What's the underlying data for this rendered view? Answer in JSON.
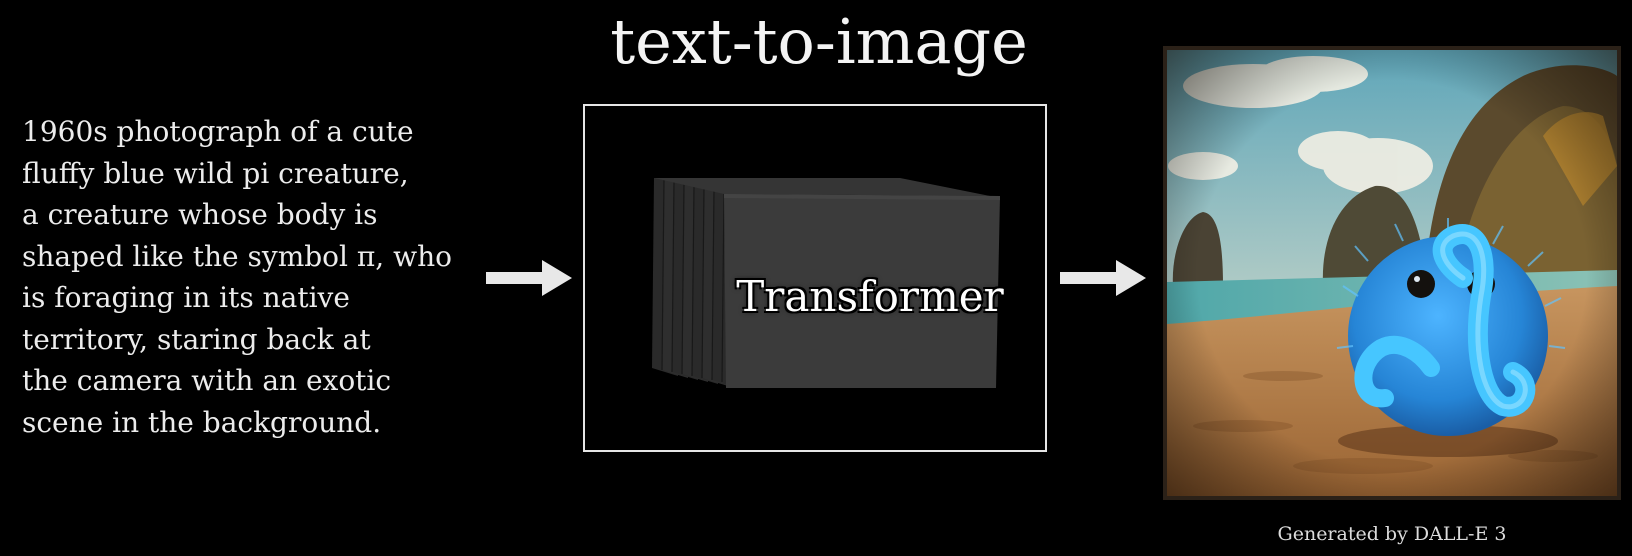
{
  "title": "text-to-image",
  "prompt_lines": [
    "1960s photograph of a cute",
    "fluffy blue wild pi creature,",
    "a creature whose body is",
    "shaped like the symbol π, who",
    "is foraging in its native",
    "territory, staring back at",
    "the camera with an exotic",
    "scene in the background."
  ],
  "model_label": "Transformer",
  "caption": "Generated by DALL-E 3",
  "colors": {
    "background": "#000000",
    "text": "#ececec",
    "arrow": "#e8e8e8",
    "block_face": "#3b3b3b",
    "creature": "#2f9ee8"
  }
}
